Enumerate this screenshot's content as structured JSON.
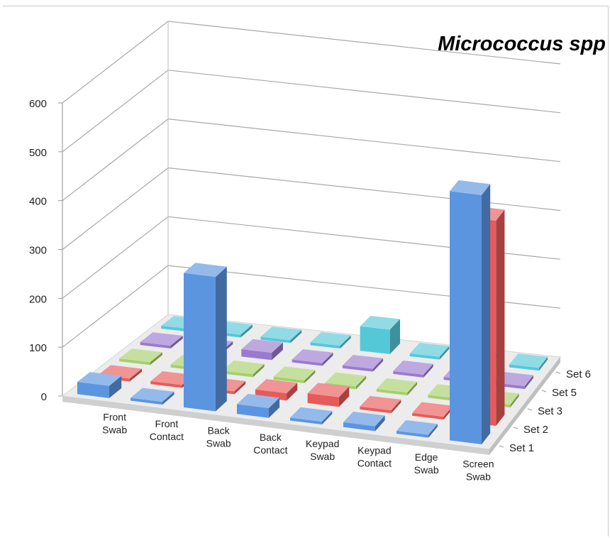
{
  "chart_data": {
    "type": "bar",
    "title": "Micrococcus spp",
    "categories": [
      "Front\nSwab",
      "Front\nContact",
      "Back\nSwab",
      "Back\nContact",
      "Keypad\nSwab",
      "Keypad\nContact",
      "Edge\nSwab",
      "Screen\nSwab"
    ],
    "series": [
      {
        "name": "Set 1",
        "color": "#5b95e0",
        "values": [
          25,
          5,
          275,
          20,
          0,
          10,
          0,
          510
        ]
      },
      {
        "name": "Set 2",
        "color": "#e85a5a",
        "values": [
          5,
          5,
          5,
          15,
          20,
          5,
          0,
          420
        ]
      },
      {
        "name": "Set 3",
        "color": "#a6d06a",
        "values": [
          0,
          0,
          0,
          0,
          0,
          5,
          5,
          0
        ]
      },
      {
        "name": "Set 5",
        "color": "#9a7ad0",
        "values": [
          0,
          0,
          15,
          0,
          5,
          0,
          0,
          0
        ]
      },
      {
        "name": "Set 6",
        "color": "#55c8d8",
        "values": [
          0,
          0,
          0,
          0,
          50,
          0,
          0,
          0
        ]
      }
    ],
    "y_ticks": [
      0,
      100,
      200,
      300,
      400,
      500,
      600
    ],
    "ylim": [
      0,
      600
    ],
    "grid": true,
    "legend": "depth-axis-right"
  }
}
